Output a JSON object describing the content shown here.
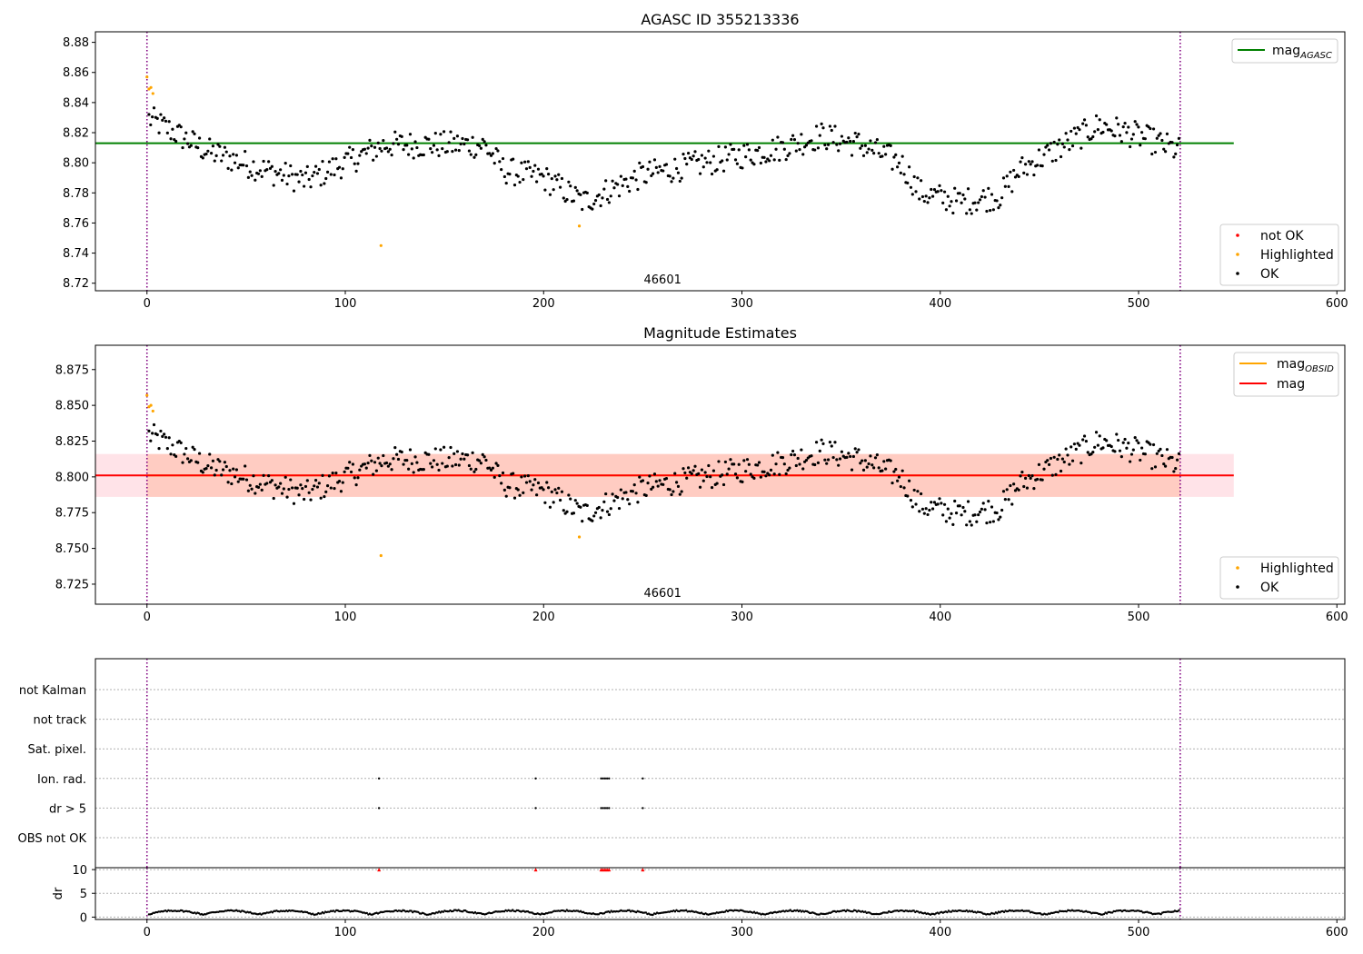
{
  "chart_data": [
    {
      "type": "scatter",
      "title": "AGASC ID 355213336",
      "xlim": [
        -26,
        604
      ],
      "ylim": [
        8.715,
        8.887
      ],
      "xticks": [
        0,
        100,
        200,
        300,
        400,
        500,
        600
      ],
      "yticks": [
        8.72,
        8.74,
        8.76,
        8.78,
        8.8,
        8.82,
        8.84,
        8.86,
        8.88
      ],
      "ytick_decimals": 2,
      "annotation": {
        "text": "46601",
        "x": 260
      },
      "vlines": [
        0,
        521
      ],
      "hlines": [
        {
          "name": "mag_AGASC",
          "y": 8.813,
          "x": [
            -26,
            548
          ],
          "color": "#008000"
        }
      ],
      "series": [
        {
          "name": "not OK",
          "color": "#ff0000",
          "points": []
        },
        {
          "name": "Highlighted",
          "color": "#ffa500",
          "points": [
            [
              0,
              8.857
            ],
            [
              1,
              8.849
            ],
            [
              2,
              8.85
            ],
            [
              3,
              8.846
            ],
            [
              118,
              8.745
            ],
            [
              218,
              8.758
            ]
          ]
        },
        {
          "name": "OK",
          "color": "#000000"
        }
      ],
      "legend_lines": {
        "name": "mag",
        "sub": "AGASC",
        "color": "#008000"
      }
    },
    {
      "type": "scatter",
      "title": "Magnitude Estimates",
      "xlim": [
        -26,
        604
      ],
      "ylim": [
        8.711,
        8.892
      ],
      "xticks": [
        0,
        100,
        200,
        300,
        400,
        500,
        600
      ],
      "yticks": [
        8.725,
        8.75,
        8.775,
        8.8,
        8.825,
        8.85,
        8.875
      ],
      "ytick_decimals": 3,
      "annotation": {
        "text": "46601",
        "x": 260
      },
      "vlines": [
        0,
        521
      ],
      "bands": [
        {
          "y": [
            8.786,
            8.816
          ],
          "x": [
            -26,
            548
          ],
          "color": "#ffc0cb"
        },
        {
          "y": [
            8.786,
            8.816
          ],
          "x": [
            0,
            521
          ],
          "color": "#ffa07a"
        }
      ],
      "hlines": [
        {
          "name": "mag_OBSID",
          "y": 8.801,
          "x": [
            0,
            521
          ],
          "color": "#ffa500"
        },
        {
          "name": "mag",
          "y": 8.801,
          "x": [
            -26,
            548
          ],
          "color": "#ff0000"
        }
      ],
      "series": [
        {
          "name": "Highlighted",
          "color": "#ffa500",
          "points": [
            [
              0,
              8.857
            ],
            [
              1,
              8.849
            ],
            [
              2,
              8.85
            ],
            [
              3,
              8.846
            ],
            [
              118,
              8.745
            ],
            [
              218,
              8.758
            ]
          ]
        },
        {
          "name": "OK",
          "color": "#000000"
        }
      ]
    },
    {
      "type": "scatter",
      "title": "",
      "xlim": [
        -26,
        604
      ],
      "xticks": [
        0,
        100,
        200,
        300,
        400,
        500,
        600
      ],
      "flag_labels": [
        "not Kalman",
        "not track",
        "Sat. pixel.",
        "Ion. rad.",
        "dr > 5",
        "OBS not OK"
      ],
      "flags": {
        "Ion. rad.": [
          117,
          196,
          229,
          230,
          231,
          232,
          233,
          250
        ],
        "dr > 5": [
          117,
          196,
          229,
          230,
          231,
          232,
          233,
          250
        ]
      },
      "dr_ylabel": "dr",
      "dr_yticks": [
        0,
        5,
        10
      ],
      "dr_ylim": [
        -0.5,
        10.4
      ],
      "dr_capped": [
        117,
        196,
        229,
        230,
        231,
        232,
        233,
        250
      ],
      "vlines": [
        0,
        521
      ]
    }
  ],
  "legends": {
    "top_lines": [
      {
        "label": "mag",
        "sub": "AGASC",
        "color": "#008000"
      }
    ],
    "top_points": [
      {
        "label": "not OK",
        "color": "#ff0000"
      },
      {
        "label": "Highlighted",
        "color": "#ffa500"
      },
      {
        "label": "OK",
        "color": "#000000"
      }
    ],
    "mid_lines": [
      {
        "label": "mag",
        "sub": "OBSID",
        "color": "#ffa500"
      },
      {
        "label": "mag",
        "sub": "",
        "color": "#ff0000"
      }
    ],
    "mid_points": [
      {
        "label": "Highlighted",
        "color": "#ffa500"
      },
      {
        "label": "OK",
        "color": "#000000"
      }
    ]
  }
}
